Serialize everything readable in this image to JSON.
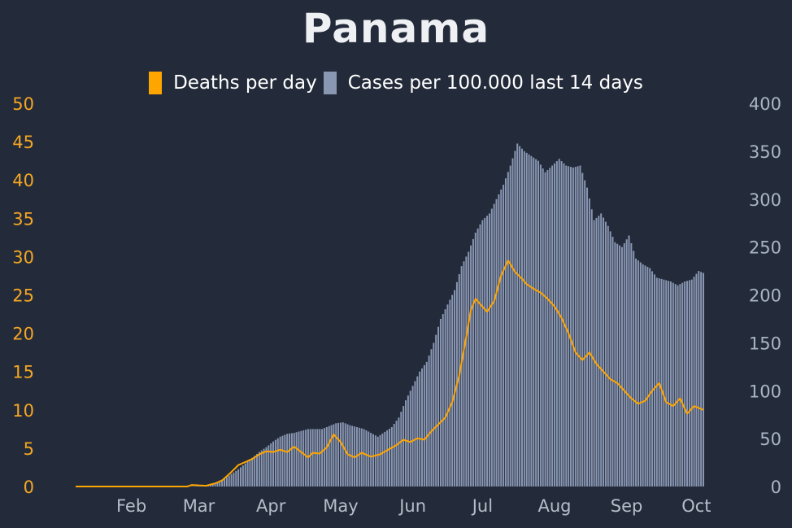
{
  "chart_data": {
    "type": "bar+line",
    "title": "Panama",
    "legend": [
      {
        "name": "Deaths per day",
        "color": "#ffa500"
      },
      {
        "name": "Cases per 100.000 last 14 days",
        "color": "#8a97b3"
      }
    ],
    "legend_position": "top-center",
    "x_start": "2020-01-22",
    "x_end": "2020-10-18",
    "x_ticks": [
      "Feb",
      "Mar",
      "Apr",
      "May",
      "Jun",
      "Jul",
      "Aug",
      "Sep",
      "Oct"
    ],
    "y_left": {
      "range": [
        0,
        50
      ],
      "ticks": [
        0,
        5,
        10,
        15,
        20,
        25,
        30,
        35,
        40,
        45,
        50
      ],
      "color": "#f5a623"
    },
    "y_right": {
      "range": [
        0,
        400
      ],
      "ticks": [
        0,
        50,
        100,
        150,
        200,
        250,
        300,
        350,
        400
      ],
      "color": "#aab4c6"
    },
    "grid": false,
    "series": [
      {
        "name": "Cases per 100.000 last 14 days",
        "kind": "bar",
        "axis": "right",
        "color": "#8a97b3",
        "points": [
          [
            "2020-01-22",
            0
          ],
          [
            "2020-03-10",
            0
          ],
          [
            "2020-03-14",
            0.5
          ],
          [
            "2020-03-17",
            1
          ],
          [
            "2020-03-20",
            2.5
          ],
          [
            "2020-03-23",
            5
          ],
          [
            "2020-03-26",
            8
          ],
          [
            "2020-03-29",
            13
          ],
          [
            "2020-04-01",
            18
          ],
          [
            "2020-04-04",
            24
          ],
          [
            "2020-04-07",
            30
          ],
          [
            "2020-04-10",
            36
          ],
          [
            "2020-04-13",
            41
          ],
          [
            "2020-04-16",
            47
          ],
          [
            "2020-04-19",
            52
          ],
          [
            "2020-04-22",
            55
          ],
          [
            "2020-04-25",
            56
          ],
          [
            "2020-04-28",
            58
          ],
          [
            "2020-05-01",
            60
          ],
          [
            "2020-05-04",
            60
          ],
          [
            "2020-05-07",
            60
          ],
          [
            "2020-05-10",
            63
          ],
          [
            "2020-05-13",
            66
          ],
          [
            "2020-05-16",
            67
          ],
          [
            "2020-05-19",
            64
          ],
          [
            "2020-05-22",
            62
          ],
          [
            "2020-05-25",
            60
          ],
          [
            "2020-05-28",
            56
          ],
          [
            "2020-05-31",
            52
          ],
          [
            "2020-06-03",
            57
          ],
          [
            "2020-06-06",
            62
          ],
          [
            "2020-06-09",
            72
          ],
          [
            "2020-06-12",
            90
          ],
          [
            "2020-06-15",
            105
          ],
          [
            "2020-06-18",
            120
          ],
          [
            "2020-06-21",
            130
          ],
          [
            "2020-06-24",
            150
          ],
          [
            "2020-06-27",
            175
          ],
          [
            "2020-06-30",
            190
          ],
          [
            "2020-07-03",
            205
          ],
          [
            "2020-07-06",
            230
          ],
          [
            "2020-07-09",
            245
          ],
          [
            "2020-07-12",
            265
          ],
          [
            "2020-07-15",
            278
          ],
          [
            "2020-07-18",
            285
          ],
          [
            "2020-07-21",
            300
          ],
          [
            "2020-07-24",
            315
          ],
          [
            "2020-07-27",
            335
          ],
          [
            "2020-07-30",
            358
          ],
          [
            "2020-08-02",
            350
          ],
          [
            "2020-08-05",
            345
          ],
          [
            "2020-08-08",
            340
          ],
          [
            "2020-08-11",
            328
          ],
          [
            "2020-08-14",
            335
          ],
          [
            "2020-08-17",
            342
          ],
          [
            "2020-08-20",
            335
          ],
          [
            "2020-08-23",
            333
          ],
          [
            "2020-08-26",
            335
          ],
          [
            "2020-08-29",
            312
          ],
          [
            "2020-09-01",
            278
          ],
          [
            "2020-09-04",
            285
          ],
          [
            "2020-09-07",
            272
          ],
          [
            "2020-09-10",
            255
          ],
          [
            "2020-09-13",
            250
          ],
          [
            "2020-09-16",
            262
          ],
          [
            "2020-09-19",
            238
          ],
          [
            "2020-09-22",
            232
          ],
          [
            "2020-09-25",
            228
          ],
          [
            "2020-09-28",
            218
          ],
          [
            "2020-10-01",
            216
          ],
          [
            "2020-10-04",
            214
          ],
          [
            "2020-10-07",
            210
          ],
          [
            "2020-10-10",
            214
          ],
          [
            "2020-10-13",
            216
          ],
          [
            "2020-10-16",
            225
          ],
          [
            "2020-10-18",
            223
          ]
        ]
      },
      {
        "name": "Deaths per day",
        "kind": "line",
        "axis": "left",
        "color": "#ffa500",
        "points": [
          [
            "2020-01-22",
            0
          ],
          [
            "2020-03-10",
            0
          ],
          [
            "2020-03-12",
            0.2
          ],
          [
            "2020-03-18",
            0.1
          ],
          [
            "2020-03-22",
            0.4
          ],
          [
            "2020-03-25",
            0.8
          ],
          [
            "2020-03-28",
            1.6
          ],
          [
            "2020-04-01",
            2.8
          ],
          [
            "2020-04-04",
            3.2
          ],
          [
            "2020-04-07",
            3.6
          ],
          [
            "2020-04-10",
            4.2
          ],
          [
            "2020-04-13",
            4.6
          ],
          [
            "2020-04-16",
            4.5
          ],
          [
            "2020-04-19",
            4.8
          ],
          [
            "2020-04-22",
            4.5
          ],
          [
            "2020-04-25",
            5.2
          ],
          [
            "2020-04-28",
            4.5
          ],
          [
            "2020-05-01",
            3.8
          ],
          [
            "2020-05-03",
            4.4
          ],
          [
            "2020-05-06",
            4.3
          ],
          [
            "2020-05-09",
            5.1
          ],
          [
            "2020-05-12",
            6.8
          ],
          [
            "2020-05-15",
            5.8
          ],
          [
            "2020-05-18",
            4.2
          ],
          [
            "2020-05-21",
            3.8
          ],
          [
            "2020-05-24",
            4.4
          ],
          [
            "2020-05-28",
            3.9
          ],
          [
            "2020-06-01",
            4.2
          ],
          [
            "2020-06-05",
            4.9
          ],
          [
            "2020-06-08",
            5.4
          ],
          [
            "2020-06-11",
            6.1
          ],
          [
            "2020-06-14",
            5.8
          ],
          [
            "2020-06-17",
            6.3
          ],
          [
            "2020-06-20",
            6.1
          ],
          [
            "2020-06-23",
            7.2
          ],
          [
            "2020-06-26",
            8.1
          ],
          [
            "2020-06-29",
            9.0
          ],
          [
            "2020-07-02",
            11.0
          ],
          [
            "2020-07-05",
            14.5
          ],
          [
            "2020-07-08",
            19.5
          ],
          [
            "2020-07-10",
            23.0
          ],
          [
            "2020-07-12",
            24.5
          ],
          [
            "2020-07-14",
            23.8
          ],
          [
            "2020-07-17",
            22.8
          ],
          [
            "2020-07-20",
            24.2
          ],
          [
            "2020-07-23",
            27.5
          ],
          [
            "2020-07-26",
            29.5
          ],
          [
            "2020-07-29",
            28.0
          ],
          [
            "2020-08-01",
            27.1
          ],
          [
            "2020-08-03",
            26.4
          ],
          [
            "2020-08-06",
            25.8
          ],
          [
            "2020-08-09",
            25.3
          ],
          [
            "2020-08-12",
            24.5
          ],
          [
            "2020-08-15",
            23.5
          ],
          [
            "2020-08-18",
            22.0
          ],
          [
            "2020-08-21",
            20.0
          ],
          [
            "2020-08-24",
            17.5
          ],
          [
            "2020-08-27",
            16.5
          ],
          [
            "2020-08-30",
            17.5
          ],
          [
            "2020-09-02",
            16.0
          ],
          [
            "2020-09-05",
            15.0
          ],
          [
            "2020-09-08",
            14.0
          ],
          [
            "2020-09-11",
            13.5
          ],
          [
            "2020-09-14",
            12.5
          ],
          [
            "2020-09-17",
            11.5
          ],
          [
            "2020-09-20",
            10.8
          ],
          [
            "2020-09-23",
            11.2
          ],
          [
            "2020-09-26",
            12.5
          ],
          [
            "2020-09-29",
            13.5
          ],
          [
            "2020-10-02",
            11.0
          ],
          [
            "2020-10-05",
            10.5
          ],
          [
            "2020-10-08",
            11.5
          ],
          [
            "2020-10-11",
            9.5
          ],
          [
            "2020-10-14",
            10.5
          ],
          [
            "2020-10-18",
            10.0
          ]
        ]
      }
    ]
  }
}
